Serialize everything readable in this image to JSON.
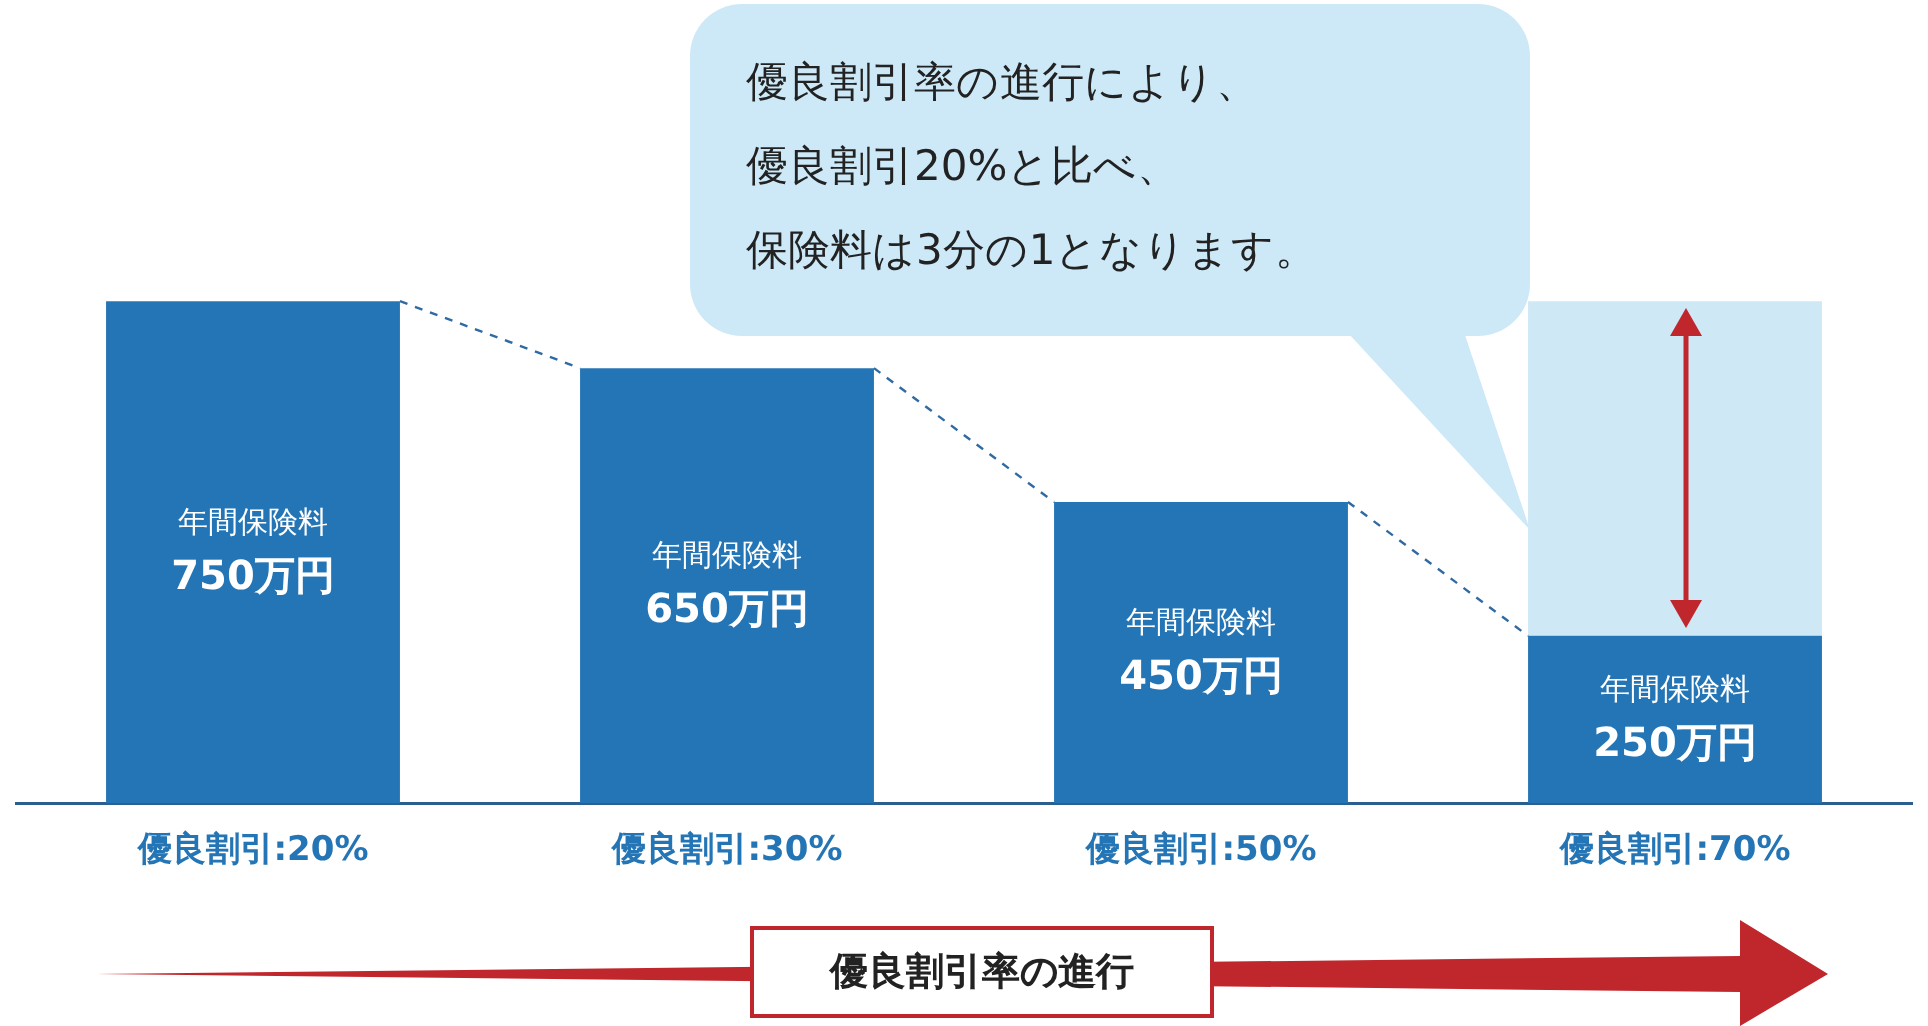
{
  "chart_data": {
    "type": "bar",
    "stacked": true,
    "categories": [
      "優良割引:20%",
      "優良割引:30%",
      "優良割引:50%",
      "優良割引:70%"
    ],
    "series": [
      {
        "color": "#2475b5",
        "values": [
          750,
          650,
          450,
          250
        ],
        "value_labels": [
          "年間保険料\n750万円",
          "年間保険料\n650万円",
          "年間保険料\n450万円",
          "年間保険料\n250万円"
        ]
      },
      {
        "color": "#cfe8f6",
        "values": [
          null,
          null,
          null,
          500
        ]
      }
    ],
    "annotations": [
      "優良割引率の進行により、優良割引20%と比べ、保険料は3分の1となります。",
      "優良割引率の進行"
    ],
    "legend": false,
    "grid": false
  }
}
